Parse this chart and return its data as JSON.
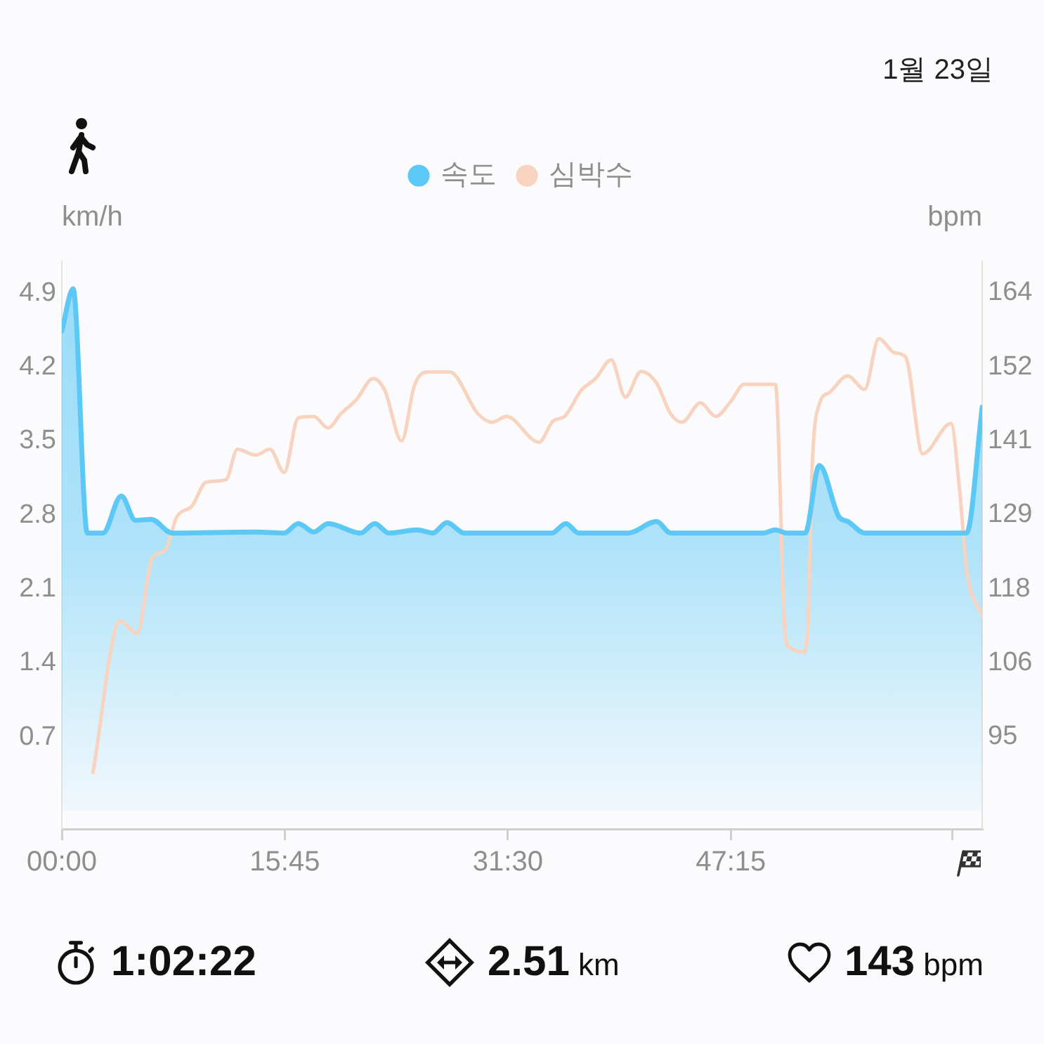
{
  "chart_data": {
    "type": "line",
    "subtitle": "1월 23일",
    "ylabel": "km/h",
    "y2label": "bpm",
    "xlim": [
      0,
      65
    ],
    "xticks": [
      {
        "value": 0,
        "label": "00:00"
      },
      {
        "value": 15.75,
        "label": "15:45"
      },
      {
        "value": 31.5,
        "label": "31:30"
      },
      {
        "value": 47.25,
        "label": "47:15"
      },
      {
        "value": 62.9,
        "label": null
      }
    ],
    "ylim": [
      -0.17,
      5.2
    ],
    "yticks": [
      0.7,
      1.4,
      2.1,
      2.8,
      3.5,
      4.2,
      4.9
    ],
    "y2lim": [
      80.2,
      168.4
    ],
    "y2ticks": [
      {
        "value": 94.5,
        "label": "95"
      },
      106,
      {
        "value": 117.5,
        "label": "118"
      },
      129,
      {
        "value": 140.5,
        "label": "141"
      },
      152,
      {
        "value": 163.5,
        "label": "164"
      }
    ],
    "series": [
      {
        "name": "속도",
        "type": "area",
        "color": "#5bc8f5",
        "x": [
          0,
          0.8,
          1.8,
          2.9,
          4.2,
          5.2,
          6.3,
          7.8,
          13.7,
          15.7,
          16.7,
          17.8,
          18.8,
          21.1,
          22.1,
          23.1,
          25.1,
          26.2,
          27.2,
          28.4,
          34.6,
          35.6,
          36.5,
          40.0,
          42.0,
          43.0,
          49.5,
          50.4,
          51.2,
          52.5,
          53.5,
          54.9,
          55.5,
          56.7,
          63.9,
          65.0
        ],
        "values": [
          4.54,
          4.94,
          2.63,
          2.63,
          2.98,
          2.75,
          2.76,
          2.63,
          2.64,
          2.63,
          2.72,
          2.64,
          2.72,
          2.63,
          2.72,
          2.63,
          2.66,
          2.63,
          2.73,
          2.63,
          2.63,
          2.72,
          2.63,
          2.63,
          2.74,
          2.63,
          2.63,
          2.66,
          2.63,
          2.63,
          3.27,
          2.78,
          2.74,
          2.63,
          2.63,
          3.82
        ]
      },
      {
        "name": "심박수",
        "type": "line",
        "axis": "y2",
        "color": "#f8d3bf",
        "x": [
          2.2,
          4.1,
          5.3,
          6.4,
          7.3,
          8.1,
          9.2,
          10.2,
          11.6,
          12.4,
          13.7,
          14.7,
          15.7,
          16.7,
          17.8,
          18.8,
          19.7,
          20.8,
          22.0,
          22.8,
          24.0,
          24.9,
          25.8,
          27.4,
          29.4,
          30.4,
          31.4,
          33.7,
          34.7,
          35.5,
          36.7,
          37.7,
          38.8,
          39.8,
          40.9,
          42.0,
          43.0,
          43.8,
          45.1,
          46.2,
          47.2,
          48.2,
          50.4,
          51.1,
          51.4,
          52.4,
          52.7,
          53.0,
          53.5,
          54.2,
          55.5,
          56.7,
          57.7,
          58.8,
          59.6,
          60.8,
          62.8,
          63.4,
          63.9,
          65.0
        ],
        "values": [
          89,
          112.5,
          110.6,
          122.4,
          123.5,
          128.6,
          130.4,
          134.1,
          134.5,
          139.2,
          138.3,
          139.2,
          135.6,
          144.1,
          144.3,
          142.5,
          144.7,
          146.9,
          150.2,
          148.4,
          140.5,
          149.1,
          151.2,
          151.2,
          144.7,
          143.4,
          144.3,
          140.3,
          143.6,
          144.3,
          148.4,
          150.2,
          153.1,
          147.3,
          151.3,
          149.5,
          144.7,
          143.4,
          146.4,
          144.3,
          146.5,
          149.3,
          149.3,
          110,
          108.4,
          107.7,
          112,
          136.7,
          146.2,
          148,
          150.6,
          148.5,
          156.4,
          154.2,
          153.5,
          138.5,
          143.2,
          133,
          120.5,
          113.3
        ]
      }
    ],
    "legend": "top",
    "grid": false,
    "marker": "none",
    "annotations": [
      "1:02:22",
      "2.51 km",
      "143 bpm"
    ]
  }
}
